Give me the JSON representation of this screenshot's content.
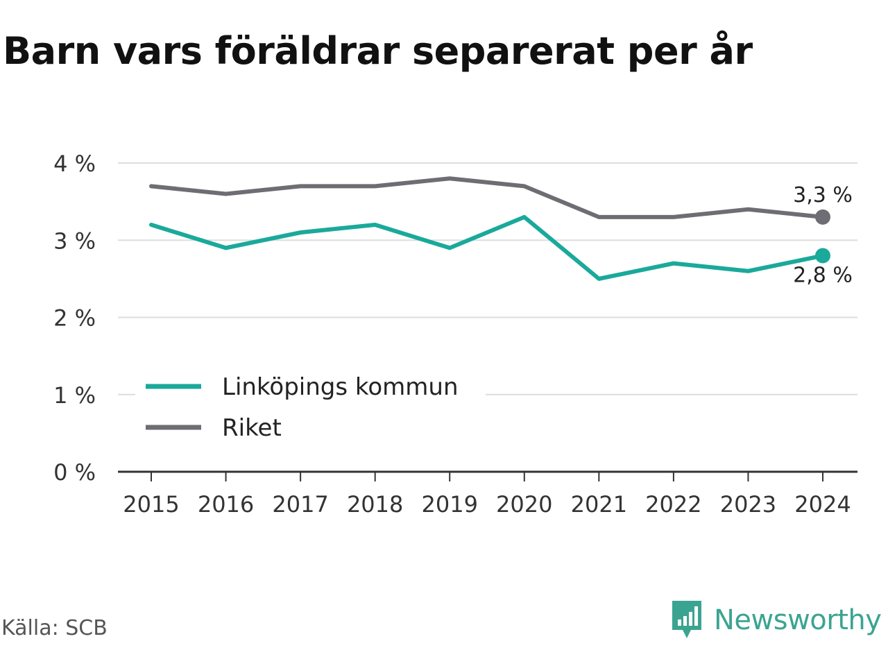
{
  "title": "Barn vars föräldrar separerat per år",
  "source": "Källa: SCB",
  "brand": {
    "name": "Newsworthy",
    "icon": "newsworthy-logo-icon",
    "color": "#3ba491"
  },
  "chart_data": {
    "type": "line",
    "title": "Barn vars föräldrar separerat per år",
    "x": [
      "2015",
      "2016",
      "2017",
      "2018",
      "2019",
      "2020",
      "2021",
      "2022",
      "2023",
      "2024"
    ],
    "series": [
      {
        "name": "Linköpings kommun",
        "color": "#1aa99b",
        "values": [
          3.2,
          2.9,
          3.1,
          3.2,
          2.9,
          3.3,
          2.5,
          2.7,
          2.6,
          2.8
        ],
        "end_label": "2,8 %"
      },
      {
        "name": "Riket",
        "color": "#6d6d73",
        "values": [
          3.7,
          3.6,
          3.7,
          3.7,
          3.8,
          3.7,
          3.3,
          3.3,
          3.4,
          3.3
        ],
        "end_label": "3,3 %"
      }
    ],
    "yticks": [
      0,
      1,
      2,
      3,
      4
    ],
    "ytick_labels": [
      "0 %",
      "1 %",
      "2 %",
      "3 %",
      "4 %"
    ],
    "ylim": [
      0,
      4
    ],
    "grid": true,
    "legend": "bottom-left"
  }
}
